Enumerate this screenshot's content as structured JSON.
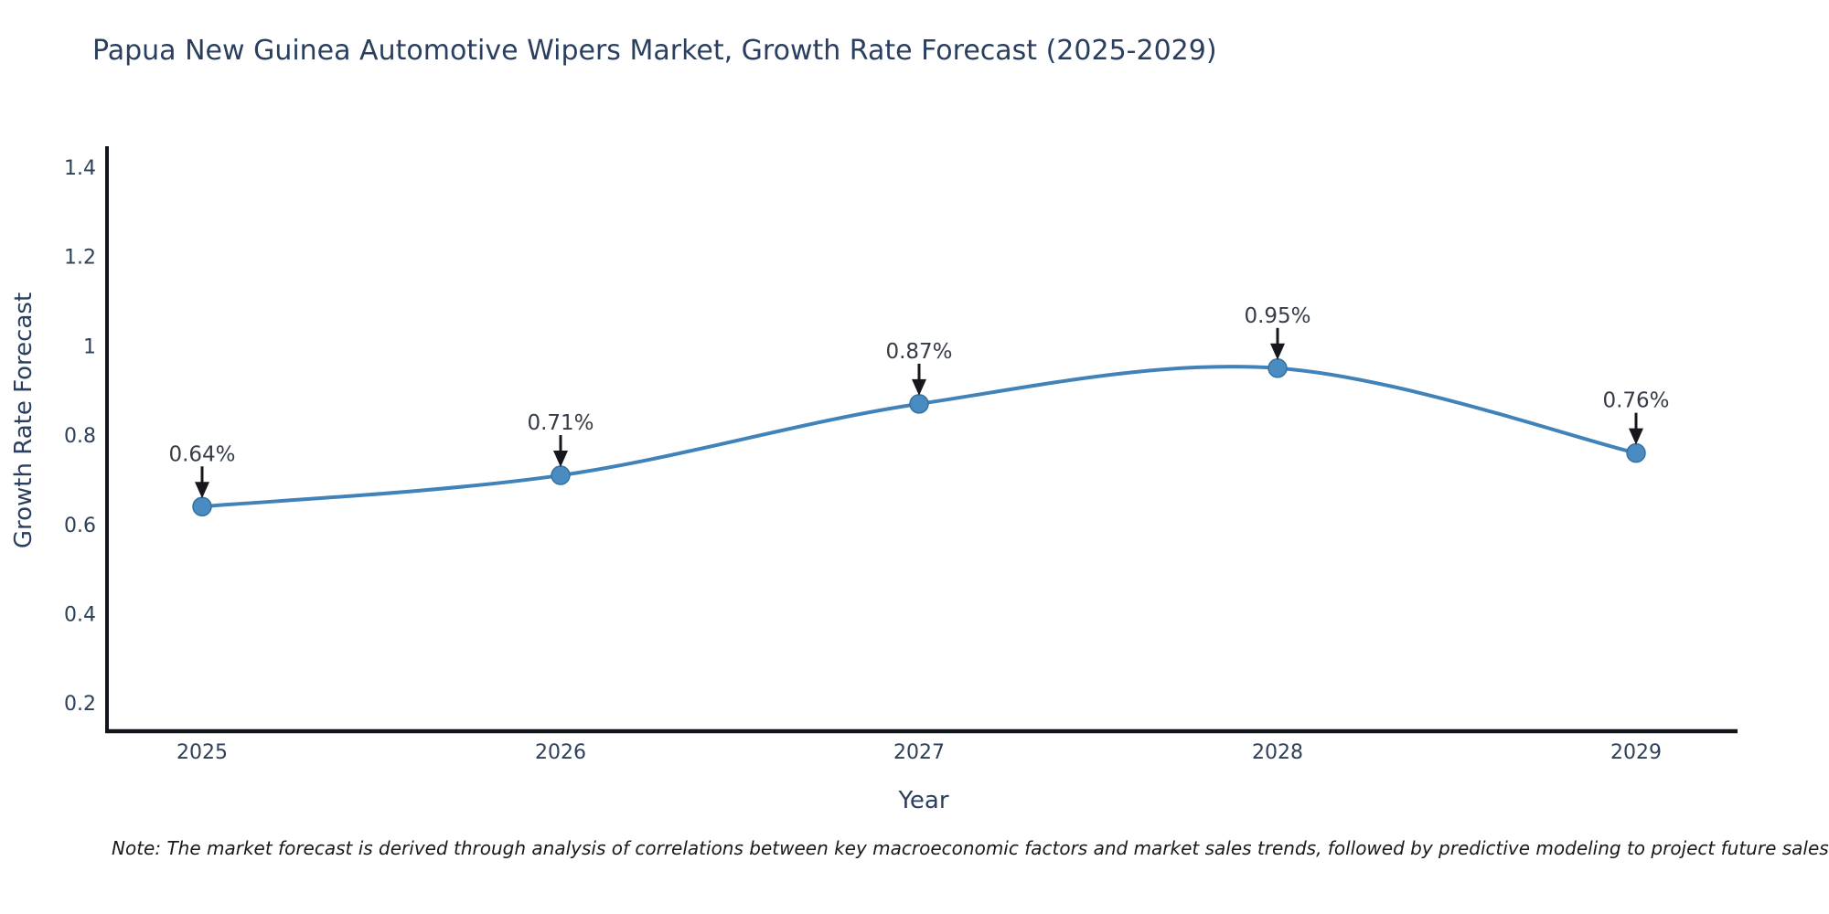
{
  "title": "Papua New Guinea Automotive Wipers Market, Growth Rate Forecast (2025-2029)",
  "note": {
    "text": "Note: The market forecast is derived through analysis of correlations between key macroeconomic factors and market sales trends, followed by predictive modeling to project future sales"
  },
  "chart_data": {
    "type": "line",
    "title": "Papua New Guinea Automotive Wipers Market, Growth Rate Forecast (2025-2029)",
    "x": [
      2025,
      2026,
      2027,
      2028,
      2029
    ],
    "xtick_labels": [
      "2025",
      "2026",
      "2027",
      "2028",
      "2029"
    ],
    "values": [
      0.64,
      0.71,
      0.87,
      0.95,
      0.76
    ],
    "point_labels": [
      "0.64%",
      "0.71%",
      "0.87%",
      "0.95%",
      "0.76%"
    ],
    "xlabel": "Year",
    "ylabel": "Growth Rate Forecast",
    "yticks": [
      0.2,
      0.4,
      0.6,
      0.8,
      1,
      1.2,
      1.4
    ],
    "ytick_labels": [
      "0.2",
      "0.4",
      "0.6",
      "0.8",
      "1",
      "1.2",
      "1.4"
    ],
    "ylim": [
      0.137,
      1.447
    ],
    "grid": false,
    "legend": false,
    "line_shape": "spline",
    "colors": {
      "line": "#4183b8",
      "marker_fill": "#4a8cc2",
      "marker_stroke": "#36719f",
      "axis": "#10151c",
      "arrow": "#16181d",
      "text": "#2a3f5f"
    }
  }
}
